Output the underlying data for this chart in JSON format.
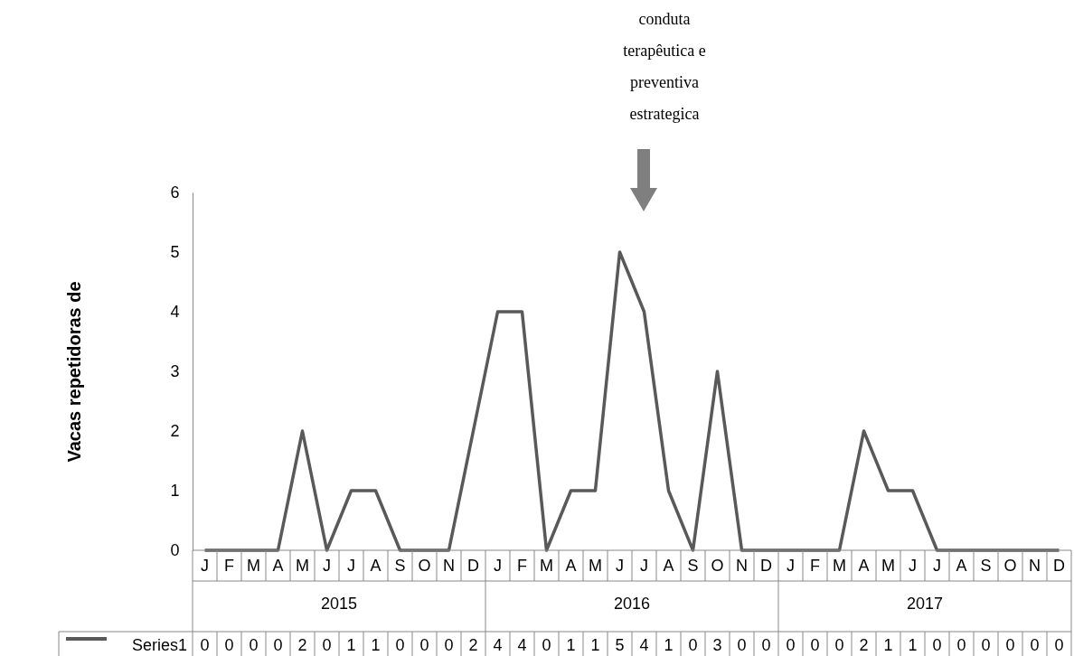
{
  "chart_data": {
    "type": "line",
    "ylabel": "Vacas repetidoras de",
    "categories": [
      "J",
      "F",
      "M",
      "A",
      "M",
      "J",
      "J",
      "A",
      "S",
      "O",
      "N",
      "D",
      "J",
      "F",
      "M",
      "A",
      "M",
      "J",
      "J",
      "A",
      "S",
      "O",
      "N",
      "D",
      "J",
      "F",
      "M",
      "A",
      "M",
      "J",
      "J",
      "A",
      "S",
      "O",
      "N",
      "D"
    ],
    "series": [
      {
        "name": "Series1",
        "color": "#595959",
        "values": [
          0,
          0,
          0,
          0,
          2,
          0,
          1,
          1,
          0,
          0,
          0,
          2,
          4,
          4,
          0,
          1,
          1,
          5,
          4,
          1,
          0,
          3,
          0,
          0,
          0,
          0,
          0,
          2,
          1,
          1,
          0,
          0,
          0,
          0,
          0,
          0
        ]
      }
    ],
    "ylim": [
      0,
      6
    ],
    "yticks": [
      0,
      1,
      2,
      3,
      4,
      5,
      6
    ],
    "grid": false,
    "legend": "bottom",
    "data_labels": true,
    "marker": "none",
    "annotations": [
      "conduta terapêutica e preventiva estrategica",
      "2015",
      "2016",
      "2017"
    ]
  }
}
